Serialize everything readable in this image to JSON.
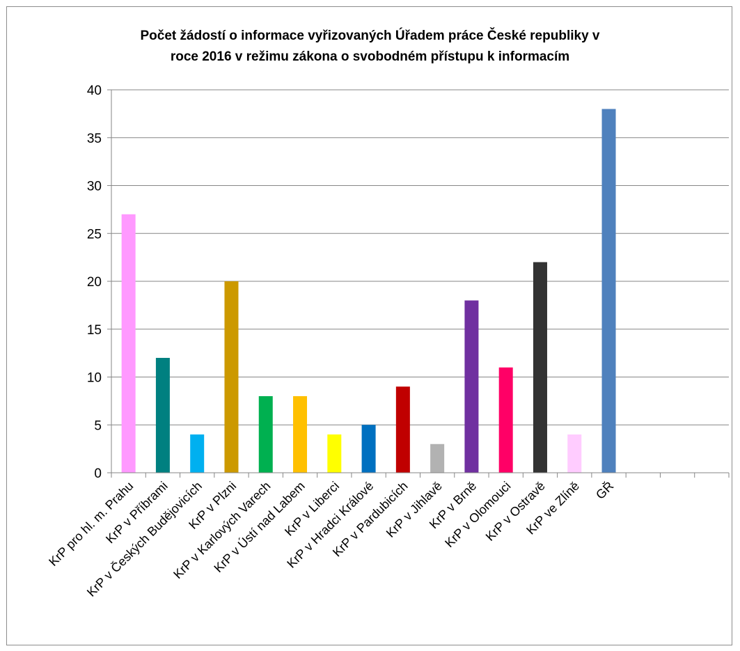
{
  "chart_data": {
    "type": "bar",
    "title_lines": [
      "Počet žádostí o informace vyřizovaných Úřadem práce České republiky v",
      "roce 2016 v režimu zákona o svobodném přístupu k informacím"
    ],
    "categories": [
      "KrP pro hl. m. Prahu",
      "KrP v Příbrami",
      "KrP v Českých Budějovicích",
      "KrP v Plzni",
      "KrP v Karlových Varech",
      "KrP v Ústí nad Labem",
      "KrP v Liberci",
      "KrP v Hradci Králové",
      "KrP v Pardubicích",
      "KrP v Jihlavě",
      "KrP v Brně",
      "KrP v Olomouci",
      "KrP v Ostravě",
      "KrP ve Zlíně",
      "GŘ",
      "",
      "",
      ""
    ],
    "values": [
      27,
      12,
      4,
      20,
      8,
      8,
      4,
      5,
      9,
      3,
      18,
      11,
      22,
      4,
      38,
      null,
      null,
      null
    ],
    "colors": [
      "#ff99ff",
      "#008080",
      "#00b0f0",
      "#cc9900",
      "#00b050",
      "#ffc000",
      "#ffff00",
      "#0070c0",
      "#c00000",
      "#b2b2b2",
      "#7030a0",
      "#ff0066",
      "#333333",
      "#ffccff",
      "#4f81bd",
      "#ffffff",
      "#ffffff",
      "#ffffff"
    ],
    "ylim": [
      0,
      40
    ],
    "yticks": [
      "0",
      "5",
      "10",
      "15",
      "20",
      "25",
      "30",
      "35",
      "40"
    ],
    "grid": true,
    "legend": "none",
    "xlabel": "",
    "ylabel": ""
  }
}
